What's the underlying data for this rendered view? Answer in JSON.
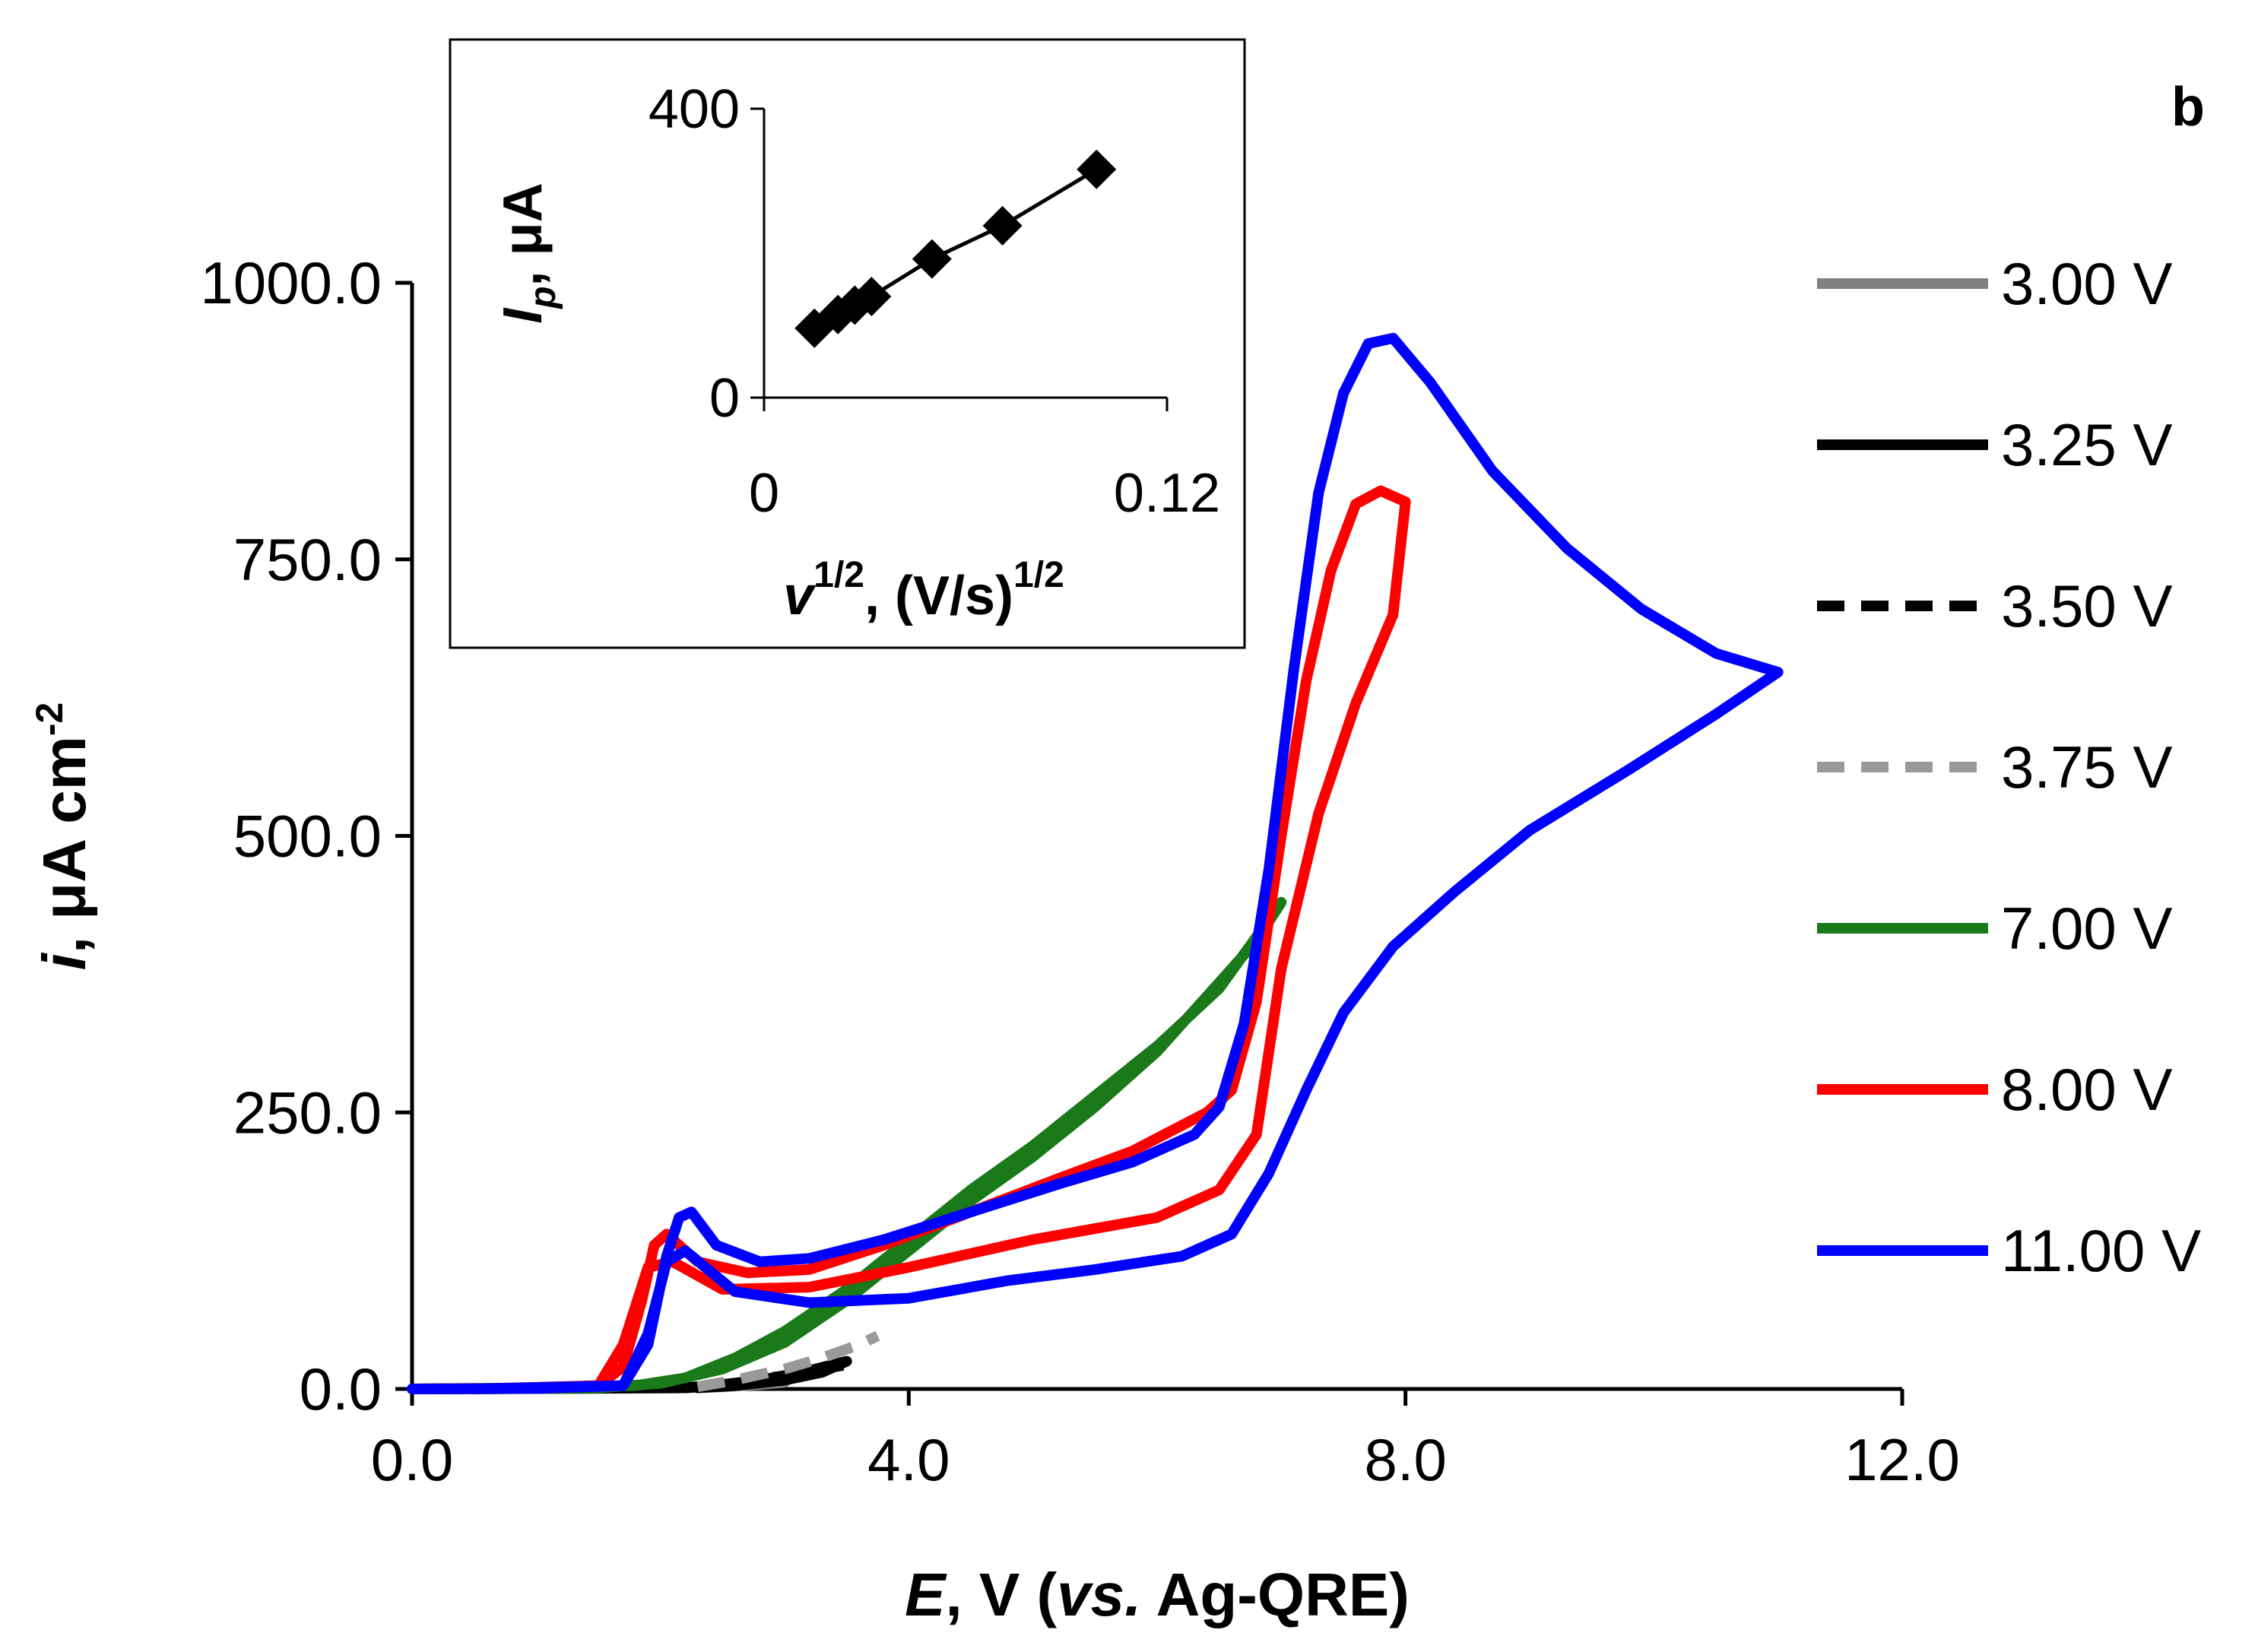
{
  "panel_label": "b",
  "chart_data": {
    "type": "line",
    "title": "",
    "xlabel": {
      "var": "E",
      "unit": ", V (",
      "vs": "vs.",
      "ref": " Ag-QRE)"
    },
    "ylabel": {
      "var": "i",
      "unit": ", μA cm",
      "exp": "-2"
    },
    "xlim": [
      0,
      12
    ],
    "ylim": [
      0,
      1000
    ],
    "xticks": [
      "0.0",
      "4.0",
      "8.0",
      "12.0"
    ],
    "yticks": [
      "0.0",
      "250.0",
      "500.0",
      "750.0",
      "1000.0"
    ],
    "legend_position": "right",
    "series": [
      {
        "name": "3.00 V",
        "color": "#808080",
        "dash": "solid",
        "points": [
          [
            0,
            0
          ],
          [
            1.5,
            0.5
          ],
          [
            2.1,
            0.8
          ],
          [
            2.5,
            2
          ],
          [
            2.8,
            4
          ],
          [
            3.0,
            6
          ]
        ]
      },
      {
        "name": "3.25 V",
        "color": "#000000",
        "dash": "solid",
        "points": [
          [
            0,
            0
          ],
          [
            2.2,
            1
          ],
          [
            2.5,
            4
          ],
          [
            2.8,
            8
          ],
          [
            3.0,
            12
          ],
          [
            3.25,
            18
          ],
          [
            3.5,
            25
          ],
          [
            3.3,
            15
          ],
          [
            3.0,
            8
          ],
          [
            2.6,
            3
          ],
          [
            2.3,
            1
          ]
        ]
      },
      {
        "name": "3.50 V",
        "color": "#000000",
        "dash": "dash",
        "points": [
          [
            2.2,
            1
          ],
          [
            2.6,
            5
          ],
          [
            3.0,
            12
          ],
          [
            3.3,
            18
          ],
          [
            3.5,
            22
          ]
        ]
      },
      {
        "name": "3.75 V",
        "color": "#999999",
        "dash": "dash",
        "points": [
          [
            2.3,
            2
          ],
          [
            2.6,
            8
          ],
          [
            3.0,
            18
          ],
          [
            3.3,
            28
          ],
          [
            3.6,
            40
          ],
          [
            3.75,
            48
          ]
        ]
      },
      {
        "name": "7.00 V",
        "color": "#1a7a1a",
        "dash": "solid",
        "points": [
          [
            0,
            0
          ],
          [
            1.0,
            1
          ],
          [
            1.8,
            3
          ],
          [
            2.2,
            10
          ],
          [
            2.6,
            28
          ],
          [
            3.0,
            52
          ],
          [
            3.5,
            90
          ],
          [
            4.0,
            135
          ],
          [
            4.5,
            180
          ],
          [
            5.0,
            220
          ],
          [
            5.5,
            265
          ],
          [
            6.0,
            310
          ],
          [
            6.5,
            362
          ],
          [
            7.0,
            440
          ],
          [
            6.8,
            405
          ],
          [
            6.4,
            355
          ],
          [
            6.0,
            305
          ],
          [
            5.5,
            255
          ],
          [
            5.0,
            210
          ],
          [
            4.5,
            170
          ],
          [
            4.0,
            125
          ],
          [
            3.5,
            80
          ],
          [
            3.0,
            42
          ],
          [
            2.5,
            18
          ],
          [
            2.0,
            5
          ],
          [
            1.5,
            1
          ],
          [
            0.5,
            0
          ]
        ]
      },
      {
        "name": "8.00 V",
        "color": "#ff0000",
        "dash": "solid",
        "points": [
          [
            0,
            0
          ],
          [
            1.0,
            0.5
          ],
          [
            1.5,
            3
          ],
          [
            1.7,
            20
          ],
          [
            1.85,
            80
          ],
          [
            1.95,
            130
          ],
          [
            2.05,
            140
          ],
          [
            2.3,
            115
          ],
          [
            2.7,
            105
          ],
          [
            3.2,
            108
          ],
          [
            3.8,
            130
          ],
          [
            4.5,
            160
          ],
          [
            5.2,
            190
          ],
          [
            5.8,
            215
          ],
          [
            6.4,
            250
          ],
          [
            6.6,
            270
          ],
          [
            6.8,
            350
          ],
          [
            7.0,
            500
          ],
          [
            7.2,
            640
          ],
          [
            7.4,
            740
          ],
          [
            7.6,
            800
          ],
          [
            7.8,
            812
          ],
          [
            8.0,
            802
          ],
          [
            7.9,
            700
          ],
          [
            7.6,
            620
          ],
          [
            7.3,
            520
          ],
          [
            7.0,
            380
          ],
          [
            6.8,
            230
          ],
          [
            6.5,
            180
          ],
          [
            6.0,
            155
          ],
          [
            5.0,
            135
          ],
          [
            4.0,
            110
          ],
          [
            3.2,
            92
          ],
          [
            2.5,
            90
          ],
          [
            2.1,
            115
          ],
          [
            1.9,
            110
          ],
          [
            1.7,
            40
          ],
          [
            1.5,
            3
          ],
          [
            0.5,
            0
          ]
        ]
      },
      {
        "name": "11.00 V",
        "color": "#0000ff",
        "dash": "solid",
        "points": [
          [
            0,
            0
          ],
          [
            1.0,
            0.5
          ],
          [
            1.7,
            3
          ],
          [
            1.9,
            40
          ],
          [
            2.05,
            120
          ],
          [
            2.15,
            155
          ],
          [
            2.25,
            160
          ],
          [
            2.45,
            130
          ],
          [
            2.8,
            115
          ],
          [
            3.2,
            118
          ],
          [
            3.8,
            135
          ],
          [
            4.5,
            160
          ],
          [
            5.2,
            185
          ],
          [
            5.8,
            205
          ],
          [
            6.3,
            230
          ],
          [
            6.5,
            255
          ],
          [
            6.7,
            330
          ],
          [
            6.9,
            470
          ],
          [
            7.1,
            650
          ],
          [
            7.3,
            810
          ],
          [
            7.5,
            900
          ],
          [
            7.7,
            945
          ],
          [
            7.9,
            950
          ],
          [
            8.2,
            910
          ],
          [
            8.7,
            830
          ],
          [
            9.3,
            760
          ],
          [
            9.9,
            705
          ],
          [
            10.5,
            665
          ],
          [
            11.0,
            648
          ],
          [
            10.5,
            610
          ],
          [
            9.8,
            560
          ],
          [
            9.0,
            505
          ],
          [
            8.4,
            450
          ],
          [
            7.9,
            400
          ],
          [
            7.5,
            340
          ],
          [
            7.2,
            270
          ],
          [
            6.9,
            195
          ],
          [
            6.6,
            140
          ],
          [
            6.2,
            120
          ],
          [
            5.5,
            108
          ],
          [
            4.8,
            98
          ],
          [
            4.0,
            82
          ],
          [
            3.2,
            78
          ],
          [
            2.6,
            88
          ],
          [
            2.2,
            125
          ],
          [
            2.05,
            115
          ],
          [
            1.9,
            50
          ],
          [
            1.7,
            3
          ],
          [
            0.5,
            0
          ]
        ]
      }
    ],
    "inset": {
      "type": "scatter",
      "xlabel": {
        "var": "v",
        "sup1": "1/2",
        "mid": ", (V/s)",
        "sup2": "1/2"
      },
      "ylabel": {
        "var": "I",
        "sub": "p",
        "unit": ", μA"
      },
      "xlim": [
        0,
        0.12
      ],
      "ylim": [
        0,
        400
      ],
      "xticks": [
        "0",
        "0.12"
      ],
      "yticks": [
        "0",
        "400"
      ],
      "points": [
        [
          0.015,
          96
        ],
        [
          0.022,
          115
        ],
        [
          0.027,
          128
        ],
        [
          0.032,
          140
        ],
        [
          0.05,
          192
        ],
        [
          0.071,
          238
        ],
        [
          0.099,
          316
        ]
      ]
    }
  }
}
